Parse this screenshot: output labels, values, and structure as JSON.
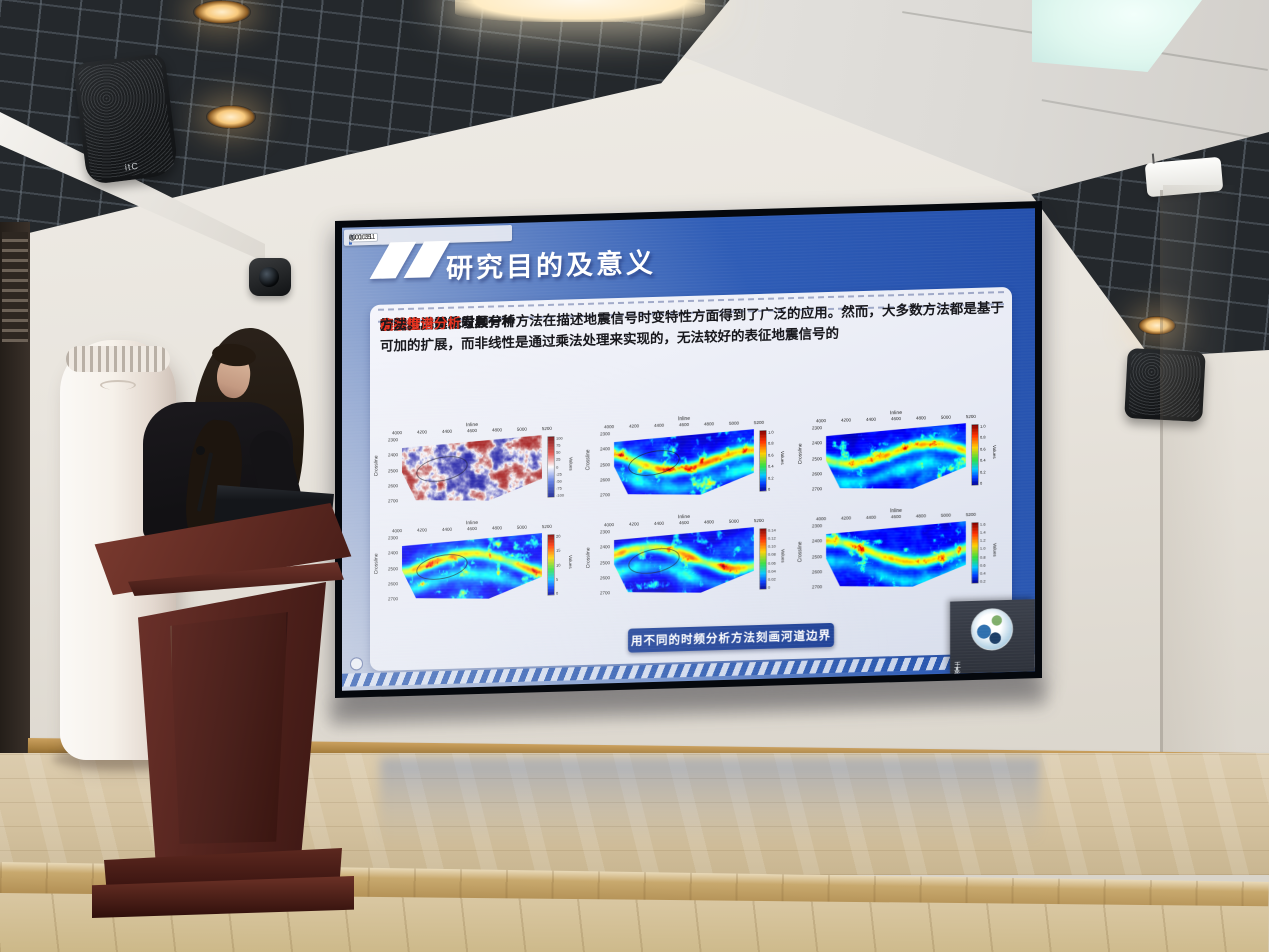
{
  "screen": {
    "toolbar": {
      "icons": [
        "share-arrow-icon",
        "pause-icon",
        "zoom-plus-icon",
        "chevron-down-icon",
        "close-icon"
      ],
      "time_current": "0:00:51",
      "time_total": "0:01:31",
      "zoom_glyph": "⊕",
      "arrow_glyph": "→",
      "chevron_glyph": "▼",
      "close_glyph": "×"
    },
    "slide": {
      "title": "研究目的及意义",
      "paragraph": [
        {
          "text": "由于地层",
          "red": false
        },
        {
          "text": "吸收",
          "red": true
        },
        {
          "text": "和",
          "red": false
        },
        {
          "text": "衰减",
          "red": true
        },
        {
          "text": "作用，地震信号具有",
          "red": false
        },
        {
          "text": "非平稳",
          "red": true
        },
        {
          "text": "和",
          "red": false
        },
        {
          "text": "非线性",
          "red": true
        },
        {
          "text": "等特征。传统时频分析方法在描述地震信号时变特性方面得到了广泛的应用。然而，大多数方法都是基于可加的扩展，而非线性是通过乘法处理来实现的，无法较好的表征地震信号的",
          "red": false
        },
        {
          "text": "非线性",
          "red": true
        },
        {
          "text": "。因此，亟需发展一种",
          "red": false
        },
        {
          "text": "高维度谱分析",
          "red": true
        },
        {
          "text": "方法。",
          "red": false
        }
      ],
      "caption": "用不同的时频分析方法刻画河道边界",
      "colors": {
        "slide_blue": "#2a57b2",
        "highlight_red": "#e8321f",
        "caption_bg": "#1c3f96",
        "panel_bg": "#eef0f7"
      }
    },
    "webcam_tile": {
      "participant_name": "王彬",
      "icon": "microphone-icon"
    }
  },
  "room": {
    "speaker_logo": "itC"
  },
  "chart_data": [
    {
      "type": "heatmap",
      "colormap": "seismic",
      "xlabel": "Inline",
      "ylabel": "Crossline",
      "x_ticks": [
        4000,
        4200,
        4400,
        4600,
        4800,
        5000,
        5200
      ],
      "y_ticks": [
        2300,
        2400,
        2500,
        2600,
        2700
      ],
      "colorbar_label": "Values",
      "colorbar_ticks": [
        "100",
        "75",
        "50",
        "25",
        "0",
        "-25",
        "-50",
        "-75",
        "-100"
      ],
      "ellipse_annotation": true
    },
    {
      "type": "heatmap",
      "colormap": "jet",
      "xlabel": "Inline",
      "ylabel": "Crossline",
      "x_ticks": [
        4000,
        4200,
        4400,
        4600,
        4800,
        5000,
        5200
      ],
      "y_ticks": [
        2300,
        2400,
        2500,
        2600,
        2700
      ],
      "colorbar_label": "Values",
      "colorbar_ticks": [
        "1.0",
        "0.8",
        "0.6",
        "0.4",
        "0.2",
        "0"
      ],
      "ellipse_annotation": true
    },
    {
      "type": "heatmap",
      "colormap": "jet",
      "xlabel": "Inline",
      "ylabel": "Crossline",
      "x_ticks": [
        4000,
        4200,
        4400,
        4600,
        4800,
        5000,
        5200
      ],
      "y_ticks": [
        2300,
        2400,
        2500,
        2600,
        2700
      ],
      "colorbar_label": "Values",
      "colorbar_ticks": [
        "1.0",
        "0.8",
        "0.6",
        "0.4",
        "0.2",
        "0"
      ],
      "ellipse_annotation": false
    },
    {
      "type": "heatmap",
      "colormap": "jet",
      "xlabel": "Inline",
      "ylabel": "Crossline",
      "x_ticks": [
        4000,
        4200,
        4400,
        4600,
        4800,
        5000,
        5200
      ],
      "y_ticks": [
        2300,
        2400,
        2500,
        2600,
        2700
      ],
      "colorbar_label": "Values",
      "colorbar_ticks": [
        "20",
        "15",
        "10",
        "5",
        "0"
      ],
      "ellipse_annotation": true
    },
    {
      "type": "heatmap",
      "colormap": "jet",
      "xlabel": "Inline",
      "ylabel": "Crossline",
      "x_ticks": [
        4000,
        4200,
        4400,
        4600,
        4800,
        5000,
        5200
      ],
      "y_ticks": [
        2300,
        2400,
        2500,
        2600,
        2700
      ],
      "colorbar_label": "Values",
      "colorbar_ticks": [
        "0.14",
        "0.12",
        "0.10",
        "0.08",
        "0.06",
        "0.04",
        "0.02",
        "0"
      ],
      "ellipse_annotation": true
    },
    {
      "type": "heatmap",
      "colormap": "jet",
      "xlabel": "Inline",
      "ylabel": "Crossline",
      "x_ticks": [
        4000,
        4200,
        4400,
        4600,
        4800,
        5000,
        5200
      ],
      "y_ticks": [
        2300,
        2400,
        2500,
        2600,
        2700
      ],
      "colorbar_label": "Values",
      "colorbar_ticks": [
        "1.6",
        "1.4",
        "1.2",
        "1.0",
        "0.8",
        "0.6",
        "0.4",
        "0.2"
      ],
      "ellipse_annotation": false
    }
  ]
}
